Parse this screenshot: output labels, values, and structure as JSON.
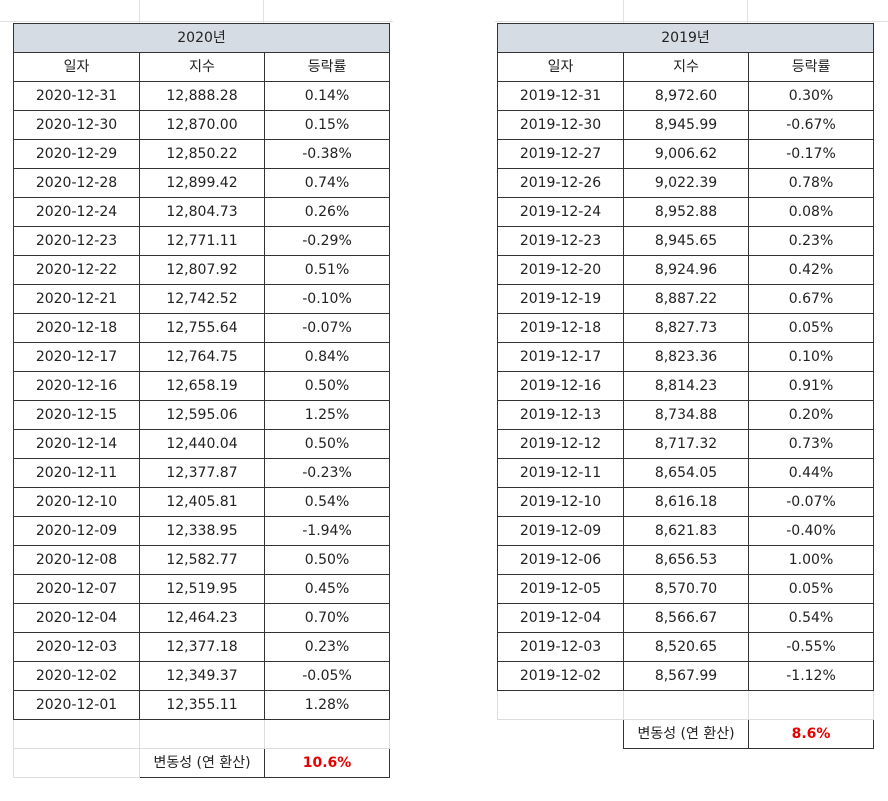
{
  "tables": [
    {
      "title": "2020년",
      "headers": [
        "일자",
        "지수",
        "등락률"
      ],
      "rows": [
        [
          "2020-12-31",
          "12,888.28",
          "0.14%"
        ],
        [
          "2020-12-30",
          "12,870.00",
          "0.15%"
        ],
        [
          "2020-12-29",
          "12,850.22",
          "-0.38%"
        ],
        [
          "2020-12-28",
          "12,899.42",
          "0.74%"
        ],
        [
          "2020-12-24",
          "12,804.73",
          "0.26%"
        ],
        [
          "2020-12-23",
          "12,771.11",
          "-0.29%"
        ],
        [
          "2020-12-22",
          "12,807.92",
          "0.51%"
        ],
        [
          "2020-12-21",
          "12,742.52",
          "-0.10%"
        ],
        [
          "2020-12-18",
          "12,755.64",
          "-0.07%"
        ],
        [
          "2020-12-17",
          "12,764.75",
          "0.84%"
        ],
        [
          "2020-12-16",
          "12,658.19",
          "0.50%"
        ],
        [
          "2020-12-15",
          "12,595.06",
          "1.25%"
        ],
        [
          "2020-12-14",
          "12,440.04",
          "0.50%"
        ],
        [
          "2020-12-11",
          "12,377.87",
          "-0.23%"
        ],
        [
          "2020-12-10",
          "12,405.81",
          "0.54%"
        ],
        [
          "2020-12-09",
          "12,338.95",
          "-1.94%"
        ],
        [
          "2020-12-08",
          "12,582.77",
          "0.50%"
        ],
        [
          "2020-12-07",
          "12,519.95",
          "0.45%"
        ],
        [
          "2020-12-04",
          "12,464.23",
          "0.70%"
        ],
        [
          "2020-12-03",
          "12,377.18",
          "0.23%"
        ],
        [
          "2020-12-02",
          "12,349.37",
          "-0.05%"
        ],
        [
          "2020-12-01",
          "12,355.11",
          "1.28%"
        ]
      ],
      "volatility_label": "변동성 (연 환산)",
      "volatility_value": "10.6%"
    },
    {
      "title": "2019년",
      "headers": [
        "일자",
        "지수",
        "등락률"
      ],
      "rows": [
        [
          "2019-12-31",
          "8,972.60",
          "0.30%"
        ],
        [
          "2019-12-30",
          "8,945.99",
          "-0.67%"
        ],
        [
          "2019-12-27",
          "9,006.62",
          "-0.17%"
        ],
        [
          "2019-12-26",
          "9,022.39",
          "0.78%"
        ],
        [
          "2019-12-24",
          "8,952.88",
          "0.08%"
        ],
        [
          "2019-12-23",
          "8,945.65",
          "0.23%"
        ],
        [
          "2019-12-20",
          "8,924.96",
          "0.42%"
        ],
        [
          "2019-12-19",
          "8,887.22",
          "0.67%"
        ],
        [
          "2019-12-18",
          "8,827.73",
          "0.05%"
        ],
        [
          "2019-12-17",
          "8,823.36",
          "0.10%"
        ],
        [
          "2019-12-16",
          "8,814.23",
          "0.91%"
        ],
        [
          "2019-12-13",
          "8,734.88",
          "0.20%"
        ],
        [
          "2019-12-12",
          "8,717.32",
          "0.73%"
        ],
        [
          "2019-12-11",
          "8,654.05",
          "0.44%"
        ],
        [
          "2019-12-10",
          "8,616.18",
          "-0.07%"
        ],
        [
          "2019-12-09",
          "8,621.83",
          "-0.40%"
        ],
        [
          "2019-12-06",
          "8,656.53",
          "1.00%"
        ],
        [
          "2019-12-05",
          "8,570.70",
          "0.05%"
        ],
        [
          "2019-12-04",
          "8,566.67",
          "0.54%"
        ],
        [
          "2019-12-03",
          "8,520.65",
          "-0.55%"
        ],
        [
          "2019-12-02",
          "8,567.99",
          "-1.12%"
        ]
      ],
      "volatility_label": "변동성 (연 환산)",
      "volatility_value": "8.6%"
    }
  ],
  "colors": {
    "title_fill": "#d6dce4",
    "border": "#333333",
    "highlight": "#e60000"
  }
}
